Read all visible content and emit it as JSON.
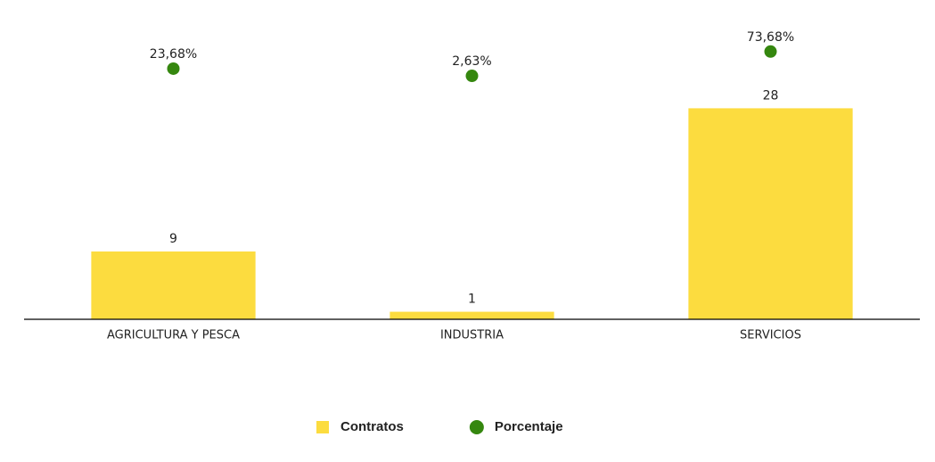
{
  "chart_data": {
    "type": "bar",
    "categories": [
      "AGRICULTURA Y PESCA",
      "INDUSTRIA",
      "SERVICIOS"
    ],
    "series": [
      {
        "name": "Contratos",
        "type": "bar",
        "color": "#fcdc3f",
        "values": [
          9,
          1,
          28
        ]
      },
      {
        "name": "Porcentaje",
        "type": "scatter",
        "axis": "y2",
        "color": "#35870f",
        "values": [
          23.68,
          2.63,
          73.68
        ],
        "value_labels": [
          "23,68%",
          "2,63%",
          "73,68%"
        ]
      }
    ],
    "ylim": [
      0,
      40
    ],
    "y2lim": [
      -708,
      172
    ],
    "legend": "bottom"
  }
}
